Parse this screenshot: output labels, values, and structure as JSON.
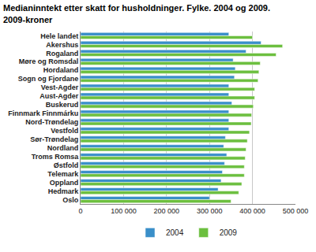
{
  "chart_data": {
    "type": "bar",
    "orientation": "horizontal",
    "title": "Medianinntekt etter skatt for husholdninger. Fylke. 2004 og 2009.",
    "subtitle": "2009-kroner",
    "categories": [
      "Hele landet",
      "Akershus",
      "Rogaland",
      "Møre og Romsdal",
      "Hordaland",
      "Sogn og Fjordane",
      "Vest-Agder",
      "Aust-Agder",
      "Buskerud",
      "Finnmark Finnmárku",
      "Nord-Trøndelag",
      "Vestfold",
      "Sør-Trøndelag",
      "Nordland",
      "Troms Romsa",
      "Østfold",
      "Telemark",
      "Oppland",
      "Hedmark",
      "Oslo"
    ],
    "series": [
      {
        "name": "2004",
        "color": "#3a8fc9",
        "values": [
          345000,
          420000,
          385000,
          355000,
          360000,
          358000,
          345000,
          345000,
          352000,
          345000,
          345000,
          345000,
          337000,
          333000,
          340000,
          335000,
          330000,
          327000,
          320000,
          300000
        ]
      },
      {
        "name": "2009",
        "color": "#6cbf3f",
        "values": [
          400000,
          470000,
          455000,
          418000,
          415000,
          413000,
          405000,
          405000,
          402000,
          398000,
          397000,
          393000,
          388000,
          385000,
          383000,
          381000,
          381000,
          375000,
          368000,
          350000
        ]
      }
    ],
    "xlim": [
      0,
      500000
    ],
    "xticks": [
      0,
      {
        "value": 100000,
        "label": "100 000"
      },
      {
        "value": 200000,
        "label": "200 000"
      },
      {
        "value": 300000,
        "label": "300 000"
      },
      {
        "value": 400000,
        "label": "400 000"
      },
      {
        "value": 500000,
        "label": "500 000"
      }
    ],
    "grid": true,
    "legend": "bottom"
  }
}
